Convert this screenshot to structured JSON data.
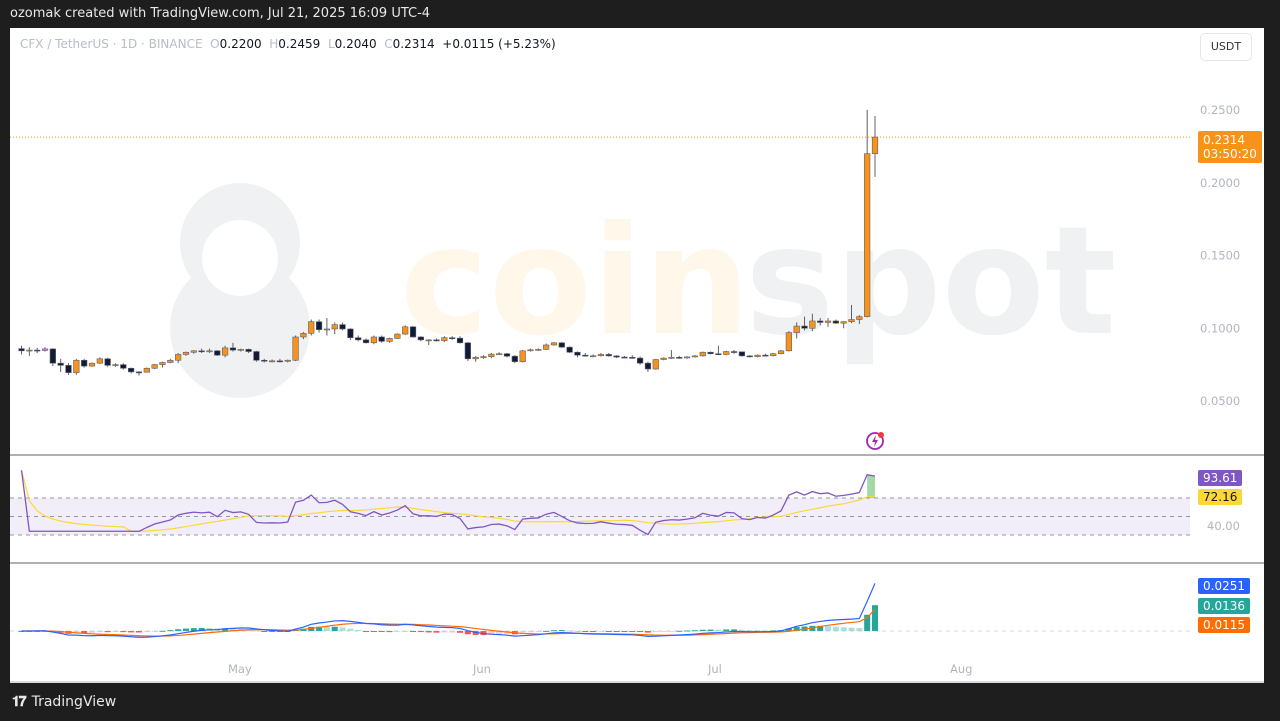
{
  "header": {
    "attribution": "ozomak created with TradingView.com, Jul 21, 2025 16:09 UTC-4"
  },
  "legend": {
    "symbol": "CFX / TetherUS · 1D · BINANCE",
    "open_label": "O",
    "open": "0.2200",
    "high_label": "H",
    "high": "0.2459",
    "low_label": "L",
    "low": "0.2040",
    "close_label": "C",
    "close": "0.2314",
    "change": "+0.0115 (+5.23%)"
  },
  "currency_button": "USDT",
  "price_axis": {
    "ticks": [
      "0.2500",
      "0.2000",
      "0.1500",
      "0.1000",
      "0.0500"
    ],
    "current_price": "0.2314",
    "countdown": "03:50:20"
  },
  "rsi_axis": {
    "rsi_value": "93.61",
    "rsi_ma_value": "72.16",
    "tick": "40.00"
  },
  "macd_axis": {
    "macd_value": "0.0251",
    "histogram_value": "0.0136",
    "signal_value": "0.0115"
  },
  "time_axis": [
    "May",
    "Jun",
    "Jul",
    "Aug"
  ],
  "footer": {
    "brand": "TradingView"
  },
  "watermark": "coinspot",
  "colors": {
    "up": "#f7931a",
    "down": "#131a35",
    "price_line": "#f7931a",
    "rsi_line": "#7e57c2",
    "rsi_ma": "#fdd835",
    "macd_line": "#2962ff",
    "signal_line": "#ff6d00",
    "hist_up": "#26a69a",
    "hist_down": "#ff5252"
  },
  "chart_data": {
    "type": "candlestick",
    "title": "CFX / TetherUS · 1D · BINANCE",
    "xlabel": "",
    "ylabel": "USDT",
    "ylim": [
      0.03,
      0.27
    ],
    "x_ticks": [
      "May",
      "Jun",
      "Jul",
      "Aug"
    ],
    "y_ticks": [
      0.05,
      0.1,
      0.15,
      0.2,
      0.25
    ],
    "last_candle": {
      "date": "Jul 21, 2025",
      "open": 0.22,
      "high": 0.2459,
      "low": 0.204,
      "close": 0.2314
    },
    "candles": [
      {
        "o": 0.086,
        "h": 0.088,
        "l": 0.082,
        "c": 0.0845
      },
      {
        "o": 0.0845,
        "h": 0.087,
        "l": 0.081,
        "c": 0.085
      },
      {
        "o": 0.085,
        "h": 0.0865,
        "l": 0.083,
        "c": 0.0848
      },
      {
        "o": 0.0848,
        "h": 0.087,
        "l": 0.084,
        "c": 0.0858
      },
      {
        "o": 0.0858,
        "h": 0.0862,
        "l": 0.074,
        "c": 0.076
      },
      {
        "o": 0.076,
        "h": 0.079,
        "l": 0.07,
        "c": 0.0745
      },
      {
        "o": 0.0745,
        "h": 0.076,
        "l": 0.068,
        "c": 0.0695
      },
      {
        "o": 0.0695,
        "h": 0.079,
        "l": 0.068,
        "c": 0.078
      },
      {
        "o": 0.078,
        "h": 0.079,
        "l": 0.073,
        "c": 0.074
      },
      {
        "o": 0.074,
        "h": 0.0765,
        "l": 0.0735,
        "c": 0.076
      },
      {
        "o": 0.076,
        "h": 0.08,
        "l": 0.0755,
        "c": 0.079
      },
      {
        "o": 0.079,
        "h": 0.0798,
        "l": 0.0735,
        "c": 0.0745
      },
      {
        "o": 0.0745,
        "h": 0.076,
        "l": 0.0735,
        "c": 0.075
      },
      {
        "o": 0.075,
        "h": 0.076,
        "l": 0.0715,
        "c": 0.0725
      },
      {
        "o": 0.0725,
        "h": 0.073,
        "l": 0.069,
        "c": 0.07
      },
      {
        "o": 0.07,
        "h": 0.0705,
        "l": 0.0675,
        "c": 0.0698
      },
      {
        "o": 0.0698,
        "h": 0.073,
        "l": 0.0695,
        "c": 0.0725
      },
      {
        "o": 0.0725,
        "h": 0.0755,
        "l": 0.072,
        "c": 0.075
      },
      {
        "o": 0.075,
        "h": 0.077,
        "l": 0.073,
        "c": 0.0765
      },
      {
        "o": 0.0765,
        "h": 0.079,
        "l": 0.076,
        "c": 0.078
      },
      {
        "o": 0.078,
        "h": 0.083,
        "l": 0.076,
        "c": 0.082
      },
      {
        "o": 0.082,
        "h": 0.084,
        "l": 0.081,
        "c": 0.0835
      },
      {
        "o": 0.0835,
        "h": 0.085,
        "l": 0.0825,
        "c": 0.0845
      },
      {
        "o": 0.0845,
        "h": 0.086,
        "l": 0.083,
        "c": 0.084
      },
      {
        "o": 0.084,
        "h": 0.086,
        "l": 0.083,
        "c": 0.0845
      },
      {
        "o": 0.0845,
        "h": 0.085,
        "l": 0.081,
        "c": 0.0815
      },
      {
        "o": 0.0815,
        "h": 0.088,
        "l": 0.08,
        "c": 0.0865
      },
      {
        "o": 0.0865,
        "h": 0.09,
        "l": 0.084,
        "c": 0.085
      },
      {
        "o": 0.085,
        "h": 0.086,
        "l": 0.084,
        "c": 0.0855
      },
      {
        "o": 0.0855,
        "h": 0.086,
        "l": 0.083,
        "c": 0.084
      },
      {
        "o": 0.084,
        "h": 0.0845,
        "l": 0.077,
        "c": 0.078
      },
      {
        "o": 0.078,
        "h": 0.079,
        "l": 0.0765,
        "c": 0.0775
      },
      {
        "o": 0.0775,
        "h": 0.0785,
        "l": 0.0765,
        "c": 0.0776
      },
      {
        "o": 0.0776,
        "h": 0.079,
        "l": 0.0765,
        "c": 0.0775
      },
      {
        "o": 0.0775,
        "h": 0.0785,
        "l": 0.0765,
        "c": 0.078
      },
      {
        "o": 0.078,
        "h": 0.095,
        "l": 0.0775,
        "c": 0.094
      },
      {
        "o": 0.094,
        "h": 0.0975,
        "l": 0.0925,
        "c": 0.0965
      },
      {
        "o": 0.0965,
        "h": 0.106,
        "l": 0.095,
        "c": 0.1045
      },
      {
        "o": 0.1045,
        "h": 0.106,
        "l": 0.097,
        "c": 0.099
      },
      {
        "o": 0.099,
        "h": 0.107,
        "l": 0.095,
        "c": 0.0995
      },
      {
        "o": 0.0995,
        "h": 0.104,
        "l": 0.096,
        "c": 0.1025
      },
      {
        "o": 0.1025,
        "h": 0.104,
        "l": 0.0985,
        "c": 0.0995
      },
      {
        "o": 0.0995,
        "h": 0.1,
        "l": 0.092,
        "c": 0.0935
      },
      {
        "o": 0.0935,
        "h": 0.095,
        "l": 0.091,
        "c": 0.092
      },
      {
        "o": 0.092,
        "h": 0.093,
        "l": 0.0895,
        "c": 0.09
      },
      {
        "o": 0.09,
        "h": 0.095,
        "l": 0.089,
        "c": 0.094
      },
      {
        "o": 0.094,
        "h": 0.095,
        "l": 0.09,
        "c": 0.091
      },
      {
        "o": 0.091,
        "h": 0.0935,
        "l": 0.09,
        "c": 0.093
      },
      {
        "o": 0.093,
        "h": 0.0965,
        "l": 0.0925,
        "c": 0.096
      },
      {
        "o": 0.096,
        "h": 0.102,
        "l": 0.0955,
        "c": 0.101
      },
      {
        "o": 0.101,
        "h": 0.1015,
        "l": 0.0935,
        "c": 0.094
      },
      {
        "o": 0.094,
        "h": 0.0945,
        "l": 0.091,
        "c": 0.092
      },
      {
        "o": 0.092,
        "h": 0.0925,
        "l": 0.0885,
        "c": 0.092
      },
      {
        "o": 0.092,
        "h": 0.093,
        "l": 0.091,
        "c": 0.0915
      },
      {
        "o": 0.0915,
        "h": 0.0945,
        "l": 0.0905,
        "c": 0.0935
      },
      {
        "o": 0.0935,
        "h": 0.0945,
        "l": 0.092,
        "c": 0.0932
      },
      {
        "o": 0.0932,
        "h": 0.0945,
        "l": 0.0895,
        "c": 0.09
      },
      {
        "o": 0.09,
        "h": 0.0905,
        "l": 0.0775,
        "c": 0.079
      },
      {
        "o": 0.079,
        "h": 0.081,
        "l": 0.077,
        "c": 0.08
      },
      {
        "o": 0.08,
        "h": 0.0815,
        "l": 0.079,
        "c": 0.0805
      },
      {
        "o": 0.0805,
        "h": 0.083,
        "l": 0.0795,
        "c": 0.0822
      },
      {
        "o": 0.0822,
        "h": 0.0835,
        "l": 0.0815,
        "c": 0.0825
      },
      {
        "o": 0.0825,
        "h": 0.083,
        "l": 0.08,
        "c": 0.0808
      },
      {
        "o": 0.0808,
        "h": 0.0815,
        "l": 0.076,
        "c": 0.077
      },
      {
        "o": 0.077,
        "h": 0.085,
        "l": 0.0765,
        "c": 0.0845
      },
      {
        "o": 0.0845,
        "h": 0.086,
        "l": 0.084,
        "c": 0.0852
      },
      {
        "o": 0.0852,
        "h": 0.0862,
        "l": 0.0845,
        "c": 0.0855
      },
      {
        "o": 0.0855,
        "h": 0.0895,
        "l": 0.085,
        "c": 0.0885
      },
      {
        "o": 0.0885,
        "h": 0.0905,
        "l": 0.088,
        "c": 0.09
      },
      {
        "o": 0.09,
        "h": 0.0905,
        "l": 0.0865,
        "c": 0.087
      },
      {
        "o": 0.087,
        "h": 0.0875,
        "l": 0.083,
        "c": 0.0835
      },
      {
        "o": 0.0835,
        "h": 0.084,
        "l": 0.08,
        "c": 0.0815
      },
      {
        "o": 0.0815,
        "h": 0.083,
        "l": 0.0805,
        "c": 0.081
      },
      {
        "o": 0.081,
        "h": 0.082,
        "l": 0.08,
        "c": 0.0811
      },
      {
        "o": 0.0811,
        "h": 0.083,
        "l": 0.0805,
        "c": 0.082
      },
      {
        "o": 0.082,
        "h": 0.083,
        "l": 0.0805,
        "c": 0.081
      },
      {
        "o": 0.081,
        "h": 0.0815,
        "l": 0.0795,
        "c": 0.0802
      },
      {
        "o": 0.0802,
        "h": 0.081,
        "l": 0.0795,
        "c": 0.08
      },
      {
        "o": 0.08,
        "h": 0.0815,
        "l": 0.079,
        "c": 0.0795
      },
      {
        "o": 0.0795,
        "h": 0.0805,
        "l": 0.075,
        "c": 0.076
      },
      {
        "o": 0.076,
        "h": 0.077,
        "l": 0.07,
        "c": 0.072
      },
      {
        "o": 0.072,
        "h": 0.079,
        "l": 0.0715,
        "c": 0.0785
      },
      {
        "o": 0.0785,
        "h": 0.08,
        "l": 0.078,
        "c": 0.0795
      },
      {
        "o": 0.0795,
        "h": 0.085,
        "l": 0.079,
        "c": 0.08
      },
      {
        "o": 0.08,
        "h": 0.081,
        "l": 0.079,
        "c": 0.0798
      },
      {
        "o": 0.0798,
        "h": 0.0808,
        "l": 0.079,
        "c": 0.0803
      },
      {
        "o": 0.0803,
        "h": 0.0815,
        "l": 0.0798,
        "c": 0.081
      },
      {
        "o": 0.081,
        "h": 0.084,
        "l": 0.0805,
        "c": 0.0835
      },
      {
        "o": 0.0835,
        "h": 0.084,
        "l": 0.082,
        "c": 0.0825
      },
      {
        "o": 0.0825,
        "h": 0.088,
        "l": 0.0815,
        "c": 0.082
      },
      {
        "o": 0.082,
        "h": 0.0845,
        "l": 0.0815,
        "c": 0.084
      },
      {
        "o": 0.084,
        "h": 0.085,
        "l": 0.0825,
        "c": 0.0838
      },
      {
        "o": 0.0838,
        "h": 0.084,
        "l": 0.0805,
        "c": 0.081
      },
      {
        "o": 0.081,
        "h": 0.0815,
        "l": 0.08,
        "c": 0.0805
      },
      {
        "o": 0.0805,
        "h": 0.082,
        "l": 0.08,
        "c": 0.0815
      },
      {
        "o": 0.0815,
        "h": 0.0825,
        "l": 0.0808,
        "c": 0.0812
      },
      {
        "o": 0.0812,
        "h": 0.083,
        "l": 0.0805,
        "c": 0.0825
      },
      {
        "o": 0.0825,
        "h": 0.085,
        "l": 0.082,
        "c": 0.0845
      },
      {
        "o": 0.0845,
        "h": 0.098,
        "l": 0.084,
        "c": 0.097
      },
      {
        "o": 0.097,
        "h": 0.104,
        "l": 0.093,
        "c": 0.1015
      },
      {
        "o": 0.1015,
        "h": 0.108,
        "l": 0.0985,
        "c": 0.1
      },
      {
        "o": 0.1,
        "h": 0.11,
        "l": 0.098,
        "c": 0.105
      },
      {
        "o": 0.105,
        "h": 0.107,
        "l": 0.102,
        "c": 0.104
      },
      {
        "o": 0.104,
        "h": 0.107,
        "l": 0.101,
        "c": 0.105
      },
      {
        "o": 0.105,
        "h": 0.106,
        "l": 0.103,
        "c": 0.1035
      },
      {
        "o": 0.1035,
        "h": 0.1048,
        "l": 0.1,
        "c": 0.1045
      },
      {
        "o": 0.1045,
        "h": 0.116,
        "l": 0.1035,
        "c": 0.106
      },
      {
        "o": 0.106,
        "h": 0.109,
        "l": 0.103,
        "c": 0.108
      },
      {
        "o": 0.108,
        "h": 0.25,
        "l": 0.1075,
        "c": 0.22
      },
      {
        "o": 0.22,
        "h": 0.2459,
        "l": 0.204,
        "c": 0.2314
      }
    ],
    "indicators": {
      "rsi": {
        "value": 93.61,
        "ma": 72.16,
        "bands": [
          70,
          50,
          30
        ],
        "tick": 40.0
      },
      "macd": {
        "macd": 0.0251,
        "histogram": 0.0136,
        "signal": 0.0115
      }
    }
  }
}
